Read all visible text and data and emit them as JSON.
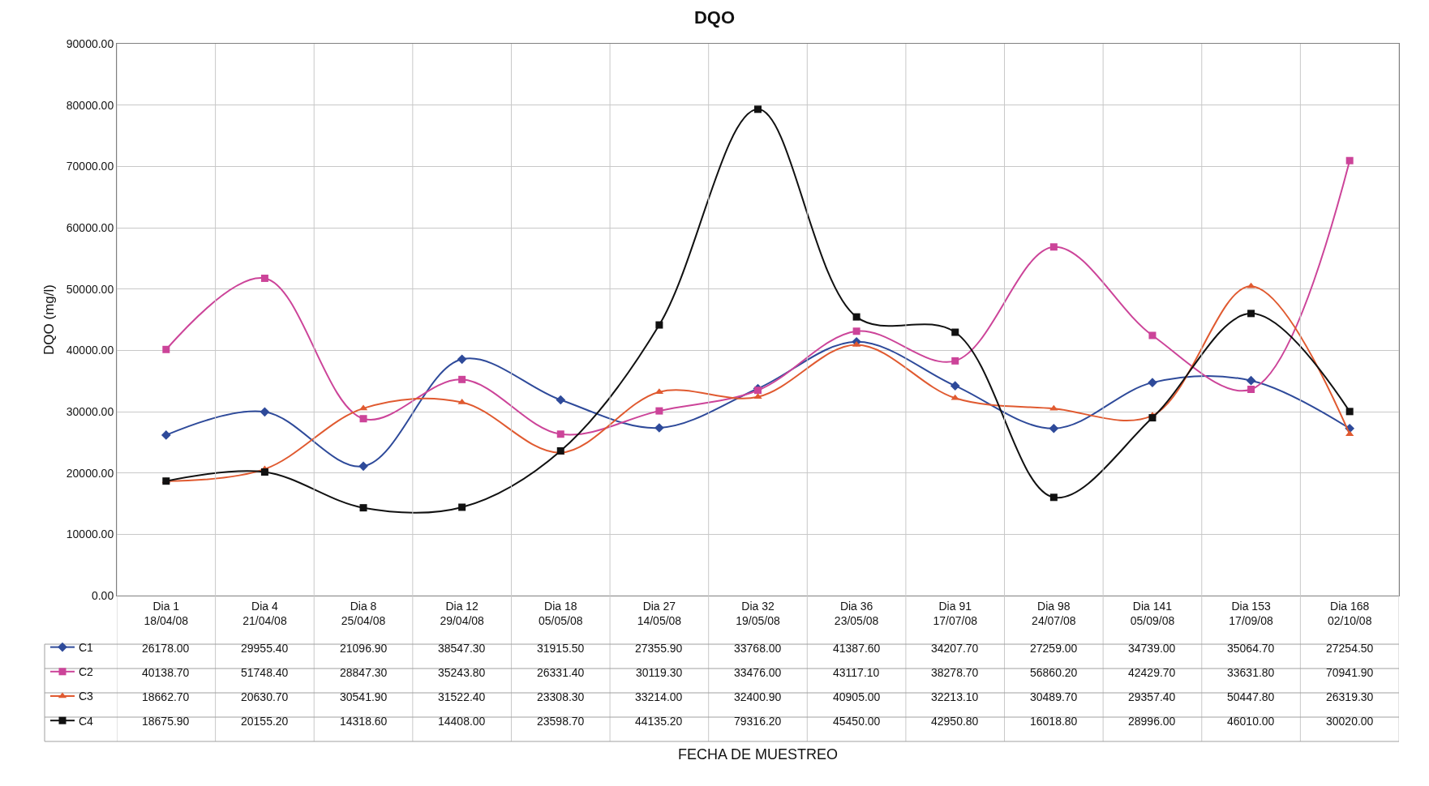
{
  "chart_data": {
    "type": "line",
    "title": "DQO",
    "ylabel": "DQO (mg/l)",
    "annotations": [
      "FECHA DE MUESTREO"
    ],
    "categories": [
      "Dia 1\n18/04/08",
      "Dia 4\n21/04/08",
      "Dia 8\n25/04/08",
      "Dia 12\n29/04/08",
      "Dia 18\n05/05/08",
      "Dia 27\n14/05/08",
      "Dia 32\n19/05/08",
      "Dia 36\n23/05/08",
      "Dia 91\n17/07/08",
      "Dia 98\n24/07/08",
      "Dia 141\n05/09/08",
      "Dia 153\n17/09/08",
      "Dia 168\n02/10/08"
    ],
    "series": [
      {
        "name": "C1",
        "color": "#2e4a9a",
        "marker": "diamond",
        "values": [
          26178.0,
          29955.4,
          21096.9,
          38547.3,
          31915.5,
          27355.9,
          33768.0,
          41387.6,
          34207.7,
          27259.0,
          34739.0,
          35064.7,
          27254.5
        ],
        "value_labels": [
          "26178.00",
          "29955.40",
          "21096.90",
          "38547.30",
          "31915.50",
          "27355.90",
          "33768.00",
          "41387.60",
          "34207.70",
          "27259.00",
          "34739.00",
          "35064.70",
          "27254.50"
        ]
      },
      {
        "name": "C2",
        "color": "#cc4499",
        "marker": "square",
        "values": [
          40138.7,
          51748.4,
          28847.3,
          35243.8,
          26331.4,
          30119.3,
          33476.0,
          43117.1,
          38278.7,
          56860.2,
          42429.7,
          33631.8,
          70941.9
        ],
        "value_labels": [
          "40138.70",
          "51748.40",
          "28847.30",
          "35243.80",
          "26331.40",
          "30119.30",
          "33476.00",
          "43117.10",
          "38278.70",
          "56860.20",
          "42429.70",
          "33631.80",
          "70941.90"
        ]
      },
      {
        "name": "C3",
        "color": "#e05a30",
        "marker": "triangle",
        "values": [
          18662.7,
          20630.7,
          30541.9,
          31522.4,
          23308.3,
          33214.0,
          32400.9,
          40905.0,
          32213.1,
          30489.7,
          29357.4,
          50447.8,
          26319.3
        ],
        "value_labels": [
          "18662.70",
          "20630.70",
          "30541.90",
          "31522.40",
          "23308.30",
          "33214.00",
          "32400.90",
          "40905.00",
          "32213.10",
          "30489.70",
          "29357.40",
          "50447.80",
          "26319.30"
        ]
      },
      {
        "name": "C4",
        "color": "#111111",
        "marker": "square",
        "values": [
          18675.9,
          20155.2,
          14318.6,
          14408.0,
          23598.7,
          44135.2,
          79316.2,
          45450.0,
          42950.8,
          16018.8,
          28996.0,
          46010.0,
          30020.0
        ],
        "value_labels": [
          "18675.90",
          "20155.20",
          "14318.60",
          "14408.00",
          "23598.70",
          "44135.20",
          "79316.20",
          "45450.00",
          "42950.80",
          "16018.80",
          "28996.00",
          "46010.00",
          "30020.00"
        ]
      }
    ],
    "ylim": [
      0,
      90000
    ],
    "yticks": [
      {
        "value": 0,
        "label": "0.00"
      },
      {
        "value": 10000,
        "label": "10000.00"
      },
      {
        "value": 20000,
        "label": "20000.00"
      },
      {
        "value": 30000,
        "label": "30000.00"
      },
      {
        "value": 40000,
        "label": "40000.00"
      },
      {
        "value": 50000,
        "label": "50000.00"
      },
      {
        "value": 60000,
        "label": "60000.00"
      },
      {
        "value": 70000,
        "label": "70000.00"
      },
      {
        "value": 80000,
        "label": "80000.00"
      },
      {
        "value": 90000,
        "label": "90000.00"
      }
    ],
    "grid": true,
    "legend": "bottom left",
    "line_style": "solid"
  }
}
